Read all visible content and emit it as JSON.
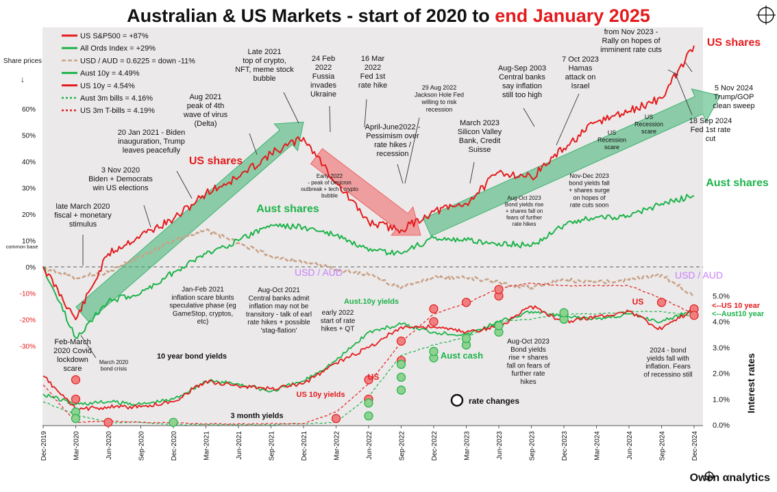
{
  "chart_data": {
    "type": "line",
    "title": "Australian & US Markets - start of 2020 to ",
    "title_highlight": "end January 2025",
    "x": [
      "Dec-2019",
      "Mar-2020",
      "Jun-2020",
      "Sep-2020",
      "Dec-2020",
      "Mar-2021",
      "Jun-2021",
      "Sep-2021",
      "Dec-2021",
      "Mar-2022",
      "Jun-2022",
      "Sep-2022",
      "Dec-2022",
      "Mar-2023",
      "Jun-2023",
      "Sep-2023",
      "Dec-2023",
      "Mar-2024",
      "Jun-2024",
      "Sep-2024",
      "Dec-2024"
    ],
    "left_axis": {
      "label": "Share prices",
      "arrow": "↓",
      "ticks": [
        "60%",
        "50%",
        "40%",
        "30%",
        "20%",
        "10%",
        "0%",
        "-10%",
        "-20%",
        "-30%"
      ],
      "values": [
        60,
        50,
        40,
        30,
        20,
        10,
        0,
        -10,
        -20,
        -30
      ],
      "extra_label": "common base"
    },
    "right_axis": {
      "label": "Interest rates",
      "ticks": [
        "5.0%",
        "4.0%",
        "3.0%",
        "2.0%",
        "1.0%",
        "0.0%"
      ],
      "values": [
        5,
        4,
        3,
        2,
        1,
        0
      ]
    },
    "grid": false,
    "legend_position": "top-left",
    "legend": [
      {
        "label": "US S&P500  = +87%",
        "color": "#e41a1c",
        "style": "solid"
      },
      {
        "label": "All Ords Index  = +29%",
        "color": "#1db34a",
        "style": "solid"
      },
      {
        "label": "USD / AUD  = 0.6225  = down -11%",
        "color": "#c9a186",
        "style": "dashed"
      },
      {
        "label": "Aust 10y  = 4.49%",
        "color": "#1db34a",
        "style": "solid"
      },
      {
        "label": "US 10y  = 4.54%",
        "color": "#e41a1c",
        "style": "solid"
      },
      {
        "label": "Aust 3m bills  = 4.16%",
        "color": "#1db34a",
        "style": "dotted"
      },
      {
        "label": "US 3m T-bills  = 4.19%",
        "color": "#e41a1c",
        "style": "dotted"
      }
    ],
    "series": [
      {
        "name": "US S&P500",
        "axis": "left",
        "color": "#e41a1c",
        "values": [
          0,
          -20,
          5,
          12,
          18,
          28,
          34,
          43,
          49,
          32,
          17,
          14,
          21,
          24,
          36,
          34,
          45,
          55,
          59,
          64,
          84
        ]
      },
      {
        "name": "All Ords Index",
        "axis": "left",
        "color": "#1db34a",
        "values": [
          0,
          -27,
          -13,
          -10,
          -2,
          5,
          10,
          16,
          15,
          12,
          6,
          5,
          11,
          10,
          9,
          8,
          16,
          19,
          19,
          24,
          27
        ]
      },
      {
        "name": "USD / AUD",
        "axis": "left",
        "color": "#c9a186",
        "values": [
          0,
          -4,
          -2,
          4,
          10,
          14,
          9,
          4,
          2,
          -1,
          -3,
          -8,
          -4,
          -4,
          -6,
          -8,
          -5,
          -6,
          -5,
          -3,
          -11
        ]
      },
      {
        "name": "Aust 10y",
        "axis": "right",
        "color": "#1db34a",
        "values": [
          1.2,
          0.8,
          0.9,
          0.8,
          1.0,
          1.7,
          1.6,
          1.3,
          1.7,
          2.5,
          3.6,
          3.9,
          3.6,
          3.5,
          4.0,
          4.4,
          4.2,
          4.1,
          4.3,
          4.0,
          4.5
        ]
      },
      {
        "name": "US 10y",
        "axis": "right",
        "color": "#e41a1c",
        "values": [
          1.9,
          0.6,
          0.7,
          0.7,
          0.9,
          1.7,
          1.5,
          1.4,
          1.6,
          2.4,
          3.0,
          3.8,
          3.8,
          3.6,
          3.8,
          4.6,
          4.0,
          4.2,
          4.4,
          3.7,
          4.5
        ]
      },
      {
        "name": "Aust 3m bills",
        "axis": "right",
        "color": "#1db34a",
        "values": [
          0.9,
          0.4,
          0.1,
          0.1,
          0.01,
          0.01,
          0.01,
          0.01,
          0.05,
          0.1,
          1.1,
          2.7,
          3.1,
          3.4,
          4.0,
          4.1,
          4.3,
          4.3,
          4.4,
          4.4,
          4.2
        ]
      },
      {
        "name": "US 3m T-bills",
        "axis": "right",
        "color": "#e41a1c",
        "values": [
          1.55,
          0.1,
          0.15,
          0.1,
          0.08,
          0.04,
          0.04,
          0.05,
          0.05,
          0.5,
          1.6,
          3.2,
          4.3,
          4.7,
          5.3,
          5.5,
          5.4,
          5.4,
          5.4,
          4.9,
          4.3
        ]
      }
    ],
    "rate_changes": {
      "legend_label": "rate changes",
      "us": {
        "color": "#f08080",
        "stroke": "#e41a1c",
        "points": [
          [
            1,
            1.75
          ],
          [
            1,
            1.0
          ],
          [
            2,
            0.1
          ],
          [
            9,
            0.25
          ],
          [
            10,
            1.0
          ],
          [
            10,
            1.75
          ],
          [
            11,
            2.5
          ],
          [
            11,
            3.25
          ],
          [
            12,
            4.0
          ],
          [
            12,
            4.5
          ],
          [
            13,
            4.75
          ],
          [
            14,
            5.0
          ],
          [
            14,
            5.25
          ],
          [
            19,
            4.75
          ],
          [
            20,
            4.5
          ],
          [
            20,
            4.25
          ]
        ]
      },
      "aust": {
        "color": "#8fd18f",
        "stroke": "#1db34a",
        "points": [
          [
            1,
            0.5
          ],
          [
            1,
            0.25
          ],
          [
            4,
            0.1
          ],
          [
            10,
            0.35
          ],
          [
            10,
            0.85
          ],
          [
            11,
            1.35
          ],
          [
            11,
            1.85
          ],
          [
            11,
            2.35
          ],
          [
            12,
            2.6
          ],
          [
            12,
            2.85
          ],
          [
            13,
            3.1
          ],
          [
            13,
            3.35
          ],
          [
            14,
            3.6
          ],
          [
            14,
            3.85
          ],
          [
            16,
            4.1
          ],
          [
            16,
            4.35
          ]
        ]
      }
    },
    "arrows": [
      {
        "from": [
          1.2,
          -18
        ],
        "to": [
          8,
          55
        ],
        "color": "#3cb371"
      },
      {
        "from": [
          8.4,
          42
        ],
        "to": [
          11.6,
          12
        ],
        "color": "#f06060"
      },
      {
        "from": [
          11.8,
          15
        ],
        "to": [
          20.8,
          65
        ],
        "color": "#3cb371"
      }
    ],
    "labels": {
      "us_shares_1": "US shares",
      "us_shares_2": "US shares",
      "aust_shares_1": "Aust shares",
      "aust_shares_2": "Aust shares",
      "usd_aud_1": "USD / AUD",
      "usd_aud_2": "USD / AUD",
      "aust_10y_yields": "Aust.10y yields",
      "us_10y_yields": "US 10y yields",
      "aust_cash": "Aust cash",
      "us_rates": "US",
      "us_rates_2": "US",
      "ten_year_bond_yields": "10 year bond yields",
      "three_month_yields": "3 month yields",
      "us_10_year": "<--US 10 year",
      "aust_10_year": "<--Aust10 year",
      "logo": "Owen αnalytics"
    },
    "annotations": [
      {
        "id": "a1",
        "lines": [
          "late March 2020",
          "fiscal + monetary",
          "stimulus"
        ]
      },
      {
        "id": "a2",
        "lines": [
          "3 Nov 2020",
          "Biden + Democrats",
          "win US elections"
        ]
      },
      {
        "id": "a3",
        "lines": [
          "20 Jan 2021 - Biden",
          "inauguration, Trump",
          "leaves peacefully"
        ]
      },
      {
        "id": "a4",
        "lines": [
          "Aug 2021",
          "peak of 4th",
          "wave of virus",
          "(Delta)"
        ]
      },
      {
        "id": "a5",
        "lines": [
          "Late 2021",
          "top of crypto,",
          "NFT, meme stock",
          "bubble"
        ]
      },
      {
        "id": "a6",
        "lines": [
          "24 Feb",
          "2022",
          "Fussia",
          "invades",
          "Ukraine"
        ]
      },
      {
        "id": "a7",
        "lines": [
          "16 Mar",
          "2022",
          "Fed 1st",
          "rate hike"
        ]
      },
      {
        "id": "a8",
        "lines": [
          "April-June2022 -",
          "Pessimism over",
          "rate hikes /",
          "recession"
        ]
      },
      {
        "id": "a9",
        "lines": [
          "29 Aug 2022",
          "Jackson Hole  Fed",
          "willing to risk",
          "recession"
        ]
      },
      {
        "id": "a10",
        "lines": [
          "March 2023",
          "Silicon Valley",
          "Bank, Credit",
          "Suisse"
        ]
      },
      {
        "id": "a11",
        "lines": [
          "Aug-Sep 2003",
          "Central banks",
          "say inflation",
          "still too high"
        ]
      },
      {
        "id": "a12",
        "lines": [
          "7 Oct 2023",
          "Hamas",
          "attack on",
          "Israel"
        ]
      },
      {
        "id": "a13",
        "lines": [
          "from Nov 2023 -",
          "Rally on  hopes of",
          "imminent rate cuts"
        ]
      },
      {
        "id": "a14",
        "lines": [
          "5 Nov 2024",
          "Trump/GOP",
          "clean sweep"
        ]
      },
      {
        "id": "a15",
        "lines": [
          "18 Sep 2024",
          "Fed 1st rate",
          "cut"
        ]
      },
      {
        "id": "a16",
        "lines": [
          "US",
          "Recession",
          "scare"
        ]
      },
      {
        "id": "a17",
        "lines": [
          "US",
          "Recession",
          "scare"
        ]
      },
      {
        "id": "a18",
        "lines": [
          "Nov-Dec 2023",
          "bond yields fall",
          "+ shares surge",
          "on hopes of",
          "rate cuts soon"
        ]
      },
      {
        "id": "a19",
        "lines": [
          "Aug-Oct 2023",
          "Bond yields rise",
          "+ shares fall  on",
          "fears of further",
          "rate hikes"
        ]
      },
      {
        "id": "a20",
        "lines": [
          "Early 2022",
          "- peak of Omicron",
          "outbreak + tech / crypto",
          "bubble"
        ]
      },
      {
        "id": "a21",
        "lines": [
          "Jan-Feb 2021",
          "inflation scare blunts",
          "speculative phase (eg",
          "GameStop, cryptos,",
          "etc)"
        ]
      },
      {
        "id": "a22",
        "lines": [
          "Aug-Oct 2021",
          "Central banks admit",
          "inflation may not be",
          "transitory - talk of earl",
          "rate hikes + possible",
          "'stag-flation'"
        ]
      },
      {
        "id": "a23",
        "lines": [
          "early 2022",
          "start of rate",
          "hikes + QT"
        ]
      },
      {
        "id": "a24",
        "lines": [
          "Feb-March",
          "2020 Covid",
          "lockdown",
          "scare"
        ]
      },
      {
        "id": "a25",
        "lines": [
          "March 2020",
          "bond crisis"
        ]
      },
      {
        "id": "a26",
        "lines": [
          "Aug-Oct 2023",
          "Bond yields",
          "rise + shares",
          "fall  on fears of",
          "further rate",
          "hikes"
        ]
      },
      {
        "id": "a27",
        "lines": [
          "2024 - bond",
          "yields fall with",
          "inflation. Fears",
          "of recessino still"
        ]
      }
    ]
  }
}
